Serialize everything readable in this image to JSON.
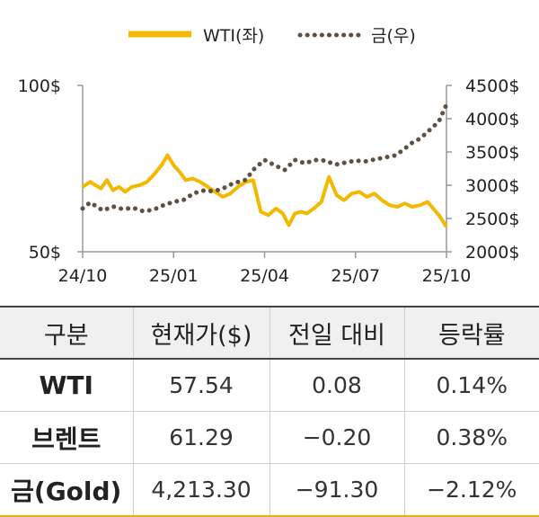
{
  "chart_data": {
    "type": "line",
    "legend_position": "top",
    "grid": false,
    "x_ticks": [
      "24/10",
      "25/01",
      "25/04",
      "25/07",
      "25/10"
    ],
    "y_left": {
      "ticks": [
        "100$",
        "50$"
      ],
      "range": [
        50,
        100
      ]
    },
    "y_right": {
      "ticks": [
        "4500$",
        "4000$",
        "3500$",
        "3000$",
        "2500$",
        "2000$"
      ],
      "range": [
        2000,
        4500
      ]
    },
    "series": [
      {
        "name": "WTI(좌)",
        "axis": "left",
        "style": "solid",
        "color": "#f5b800",
        "x": [
          "24/10",
          "24/10",
          "24/11",
          "24/11",
          "24/11",
          "24/11",
          "24/11",
          "24/12",
          "24/12",
          "24/12",
          "24/12",
          "25/01",
          "25/01",
          "25/01",
          "25/01",
          "25/01",
          "25/02",
          "25/02",
          "25/02",
          "25/02",
          "25/03",
          "25/03",
          "25/03",
          "25/03",
          "25/04",
          "25/04",
          "25/04",
          "25/04",
          "25/05",
          "25/05",
          "25/05",
          "25/05",
          "25/05",
          "25/06",
          "25/06",
          "25/06",
          "25/06",
          "25/07",
          "25/07",
          "25/07",
          "25/07",
          "25/08",
          "25/08",
          "25/08",
          "25/08",
          "25/09",
          "25/09",
          "25/09",
          "25/09",
          "25/10",
          "25/10"
        ],
        "values": [
          69.5,
          71,
          69,
          71.5,
          68.5,
          69.5,
          68,
          69.5,
          70,
          71,
          73.5,
          76,
          79,
          76,
          74,
          71.5,
          72,
          71,
          69.5,
          68,
          66.5,
          67.5,
          69.5,
          71,
          71.5,
          62,
          61,
          63,
          61.5,
          58,
          61.5,
          62,
          61.5,
          63,
          65,
          72.5,
          67,
          65.5,
          67.5,
          68,
          66.5,
          67.5,
          65.5,
          64,
          63.5,
          64.5,
          63.5,
          64,
          65,
          61,
          57.5
        ]
      },
      {
        "name": "금(우)",
        "axis": "right",
        "style": "dotted",
        "color": "#5e5043",
        "x": [
          "24/10",
          "24/10",
          "24/11",
          "24/11",
          "24/11",
          "24/12",
          "24/12",
          "24/12",
          "25/01",
          "25/01",
          "25/01",
          "25/02",
          "25/02",
          "25/02",
          "25/03",
          "25/03",
          "25/03",
          "25/03",
          "25/04",
          "25/04",
          "25/04",
          "25/05",
          "25/05",
          "25/05",
          "25/06",
          "25/06",
          "25/06",
          "25/07",
          "25/07",
          "25/07",
          "25/08",
          "25/08",
          "25/08",
          "25/09",
          "25/09",
          "25/09",
          "25/09",
          "25/10",
          "25/10"
        ],
        "values": [
          2650,
          2740,
          2620,
          2680,
          2640,
          2660,
          2610,
          2630,
          2700,
          2750,
          2780,
          2880,
          2920,
          2910,
          2950,
          3010,
          3050,
          3080,
          3250,
          3380,
          3300,
          3230,
          3380,
          3330,
          3380,
          3370,
          3310,
          3340,
          3370,
          3360,
          3390,
          3420,
          3450,
          3550,
          3640,
          3700,
          3800,
          3960,
          4213
        ]
      }
    ]
  },
  "table": {
    "headers": [
      "구분",
      "현재가($)",
      "전일 대비",
      "등락률"
    ],
    "rows": [
      [
        "WTI",
        "57.54",
        "0.08",
        "0.14%"
      ],
      [
        "브렌트",
        "61.29",
        "−0.20",
        "0.38%"
      ],
      [
        "금(Gold)",
        "4,213.30",
        "−91.30",
        "−2.12%"
      ]
    ]
  }
}
